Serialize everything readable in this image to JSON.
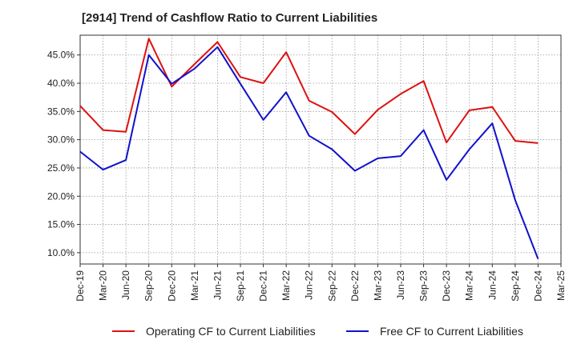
{
  "chart_data": {
    "type": "line",
    "title": "[2914]  Trend of Cashflow Ratio to Current Liabilities",
    "xlabel": "",
    "ylabel": "",
    "x": [
      "Dec-19",
      "Mar-20",
      "Jun-20",
      "Sep-20",
      "Dec-20",
      "Mar-21",
      "Jun-21",
      "Sep-21",
      "Dec-21",
      "Mar-22",
      "Jun-22",
      "Sep-22",
      "Dec-22",
      "Mar-23",
      "Jun-23",
      "Sep-23",
      "Dec-23",
      "Mar-24",
      "Jun-24",
      "Sep-24",
      "Dec-24",
      "Mar-25"
    ],
    "ylim": [
      8.0,
      48.5
    ],
    "yticks": [
      10.0,
      15.0,
      20.0,
      25.0,
      30.0,
      35.0,
      40.0,
      45.0
    ],
    "ytick_labels": [
      "10.0%",
      "15.0%",
      "20.0%",
      "25.0%",
      "30.0%",
      "35.0%",
      "40.0%",
      "45.0%"
    ],
    "grid": true,
    "legend_position": "bottom",
    "series": [
      {
        "name": "Operating CF to Current Liabilities",
        "color": "#dd1111",
        "values": [
          36.0,
          31.7,
          31.4,
          47.9,
          39.4,
          43.4,
          47.3,
          41.1,
          40.0,
          45.5,
          36.9,
          34.9,
          31.0,
          35.3,
          38.1,
          40.4,
          29.5,
          35.2,
          35.8,
          29.8,
          29.4,
          null
        ]
      },
      {
        "name": "Free CF to Current Liabilities",
        "color": "#1111cc",
        "values": [
          27.9,
          24.7,
          26.4,
          45.0,
          39.9,
          42.6,
          46.4,
          39.9,
          33.5,
          38.4,
          30.7,
          28.3,
          24.5,
          26.7,
          27.1,
          31.7,
          22.9,
          28.3,
          32.9,
          19.3,
          8.9,
          null
        ]
      }
    ]
  }
}
